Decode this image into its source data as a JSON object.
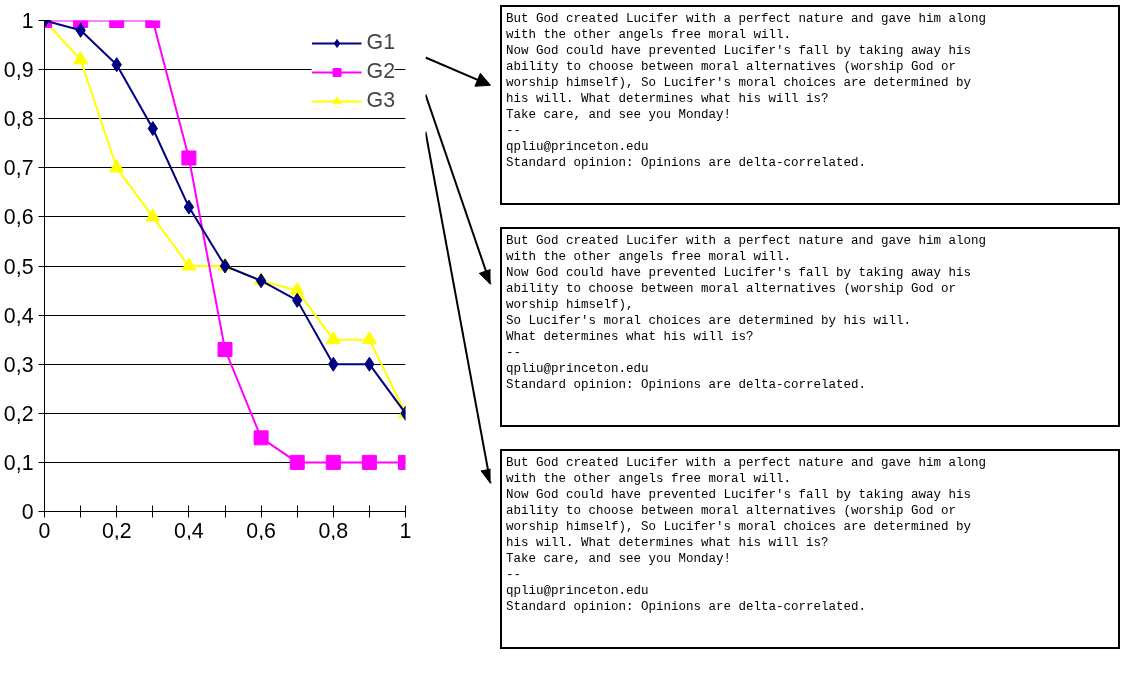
{
  "chart_data": {
    "type": "line",
    "x": [
      0,
      0.1,
      0.2,
      0.3,
      0.4,
      0.5,
      0.6,
      0.7,
      0.8,
      0.9,
      1
    ],
    "series": [
      {
        "name": "G1",
        "color": "#000080",
        "marker": "diamond",
        "values": [
          1,
          0.98,
          0.91,
          0.78,
          0.62,
          0.5,
          0.47,
          0.43,
          0.3,
          0.3,
          0.2
        ]
      },
      {
        "name": "G2",
        "color": "#ff00ff",
        "marker": "square",
        "values": [
          1,
          1,
          1,
          1,
          0.72,
          0.33,
          0.15,
          0.1,
          0.1,
          0.1,
          0.1
        ]
      },
      {
        "name": "G3",
        "color": "#ffff00",
        "marker": "triangle",
        "values": [
          1,
          0.92,
          0.7,
          0.6,
          0.5,
          0.5,
          0.47,
          0.45,
          0.35,
          0.35,
          0.2
        ]
      }
    ],
    "xlim": [
      0,
      1
    ],
    "xticks": [
      0,
      {
        "value": 0.1,
        "label": null
      },
      {
        "value": 0.2,
        "label": "0,2"
      },
      {
        "value": 0.3,
        "label": null
      },
      {
        "value": 0.4,
        "label": "0,4"
      },
      {
        "value": 0.5,
        "label": null
      },
      {
        "value": 0.6,
        "label": "0,6"
      },
      {
        "value": 0.7,
        "label": null
      },
      {
        "value": 0.8,
        "label": "0,8"
      },
      {
        "value": 0.9,
        "label": null
      },
      1
    ],
    "ylim": [
      0,
      1
    ],
    "yticks": [
      0,
      {
        "value": 0.1,
        "label": "0,1"
      },
      {
        "value": 0.2,
        "label": "0,2"
      },
      {
        "value": 0.3,
        "label": "0,3"
      },
      {
        "value": 0.4,
        "label": "0,4"
      },
      {
        "value": 0.5,
        "label": "0,5"
      },
      {
        "value": 0.6,
        "label": "0,6"
      },
      {
        "value": 0.7,
        "label": "0,7"
      },
      {
        "value": 0.8,
        "label": "0,8"
      },
      {
        "value": 0.9,
        "label": "0,9"
      },
      1
    ],
    "grid": "y",
    "legend": "top right",
    "line_style": "solid",
    "annotations": [
      "But God created Lucifer with a perfect nature and gave him along\nwith the other angels free moral will.\nNow God could have prevented Lucifer's fall by taking away his\nability to choose between moral alternatives (worship God or\nworship himself), So Lucifer's moral choices are determined by\nhis will. What determines what his will is?\nTake care, and see you Monday!\n--\nqpliu@princeton.edu\nStandard opinion: Opinions are delta-correlated.",
      "But God created Lucifer with a perfect nature and gave him along\nwith the other angels free moral will.\nNow God could have prevented Lucifer's fall by taking away his\nability to choose between moral alternatives (worship God or\nworship himself),\nSo Lucifer's moral choices are determined by his will.\nWhat determines what his will is?\n--\nqpliu@princeton.edu\nStandard opinion: Opinions are delta-correlated.",
      "But God created Lucifer with a perfect nature and gave him along\nwith the other angels free moral will.\nNow God could have prevented Lucifer's fall by taking away his\nability to choose between moral alternatives (worship God or\nworship himself), So Lucifer's moral choices are determined by\nhis will. What determines what his will is?\nTake care, and see you Monday!\n--\nqpliu@princeton.edu\nStandard opinion: Opinions are delta-correlated."
    ]
  }
}
